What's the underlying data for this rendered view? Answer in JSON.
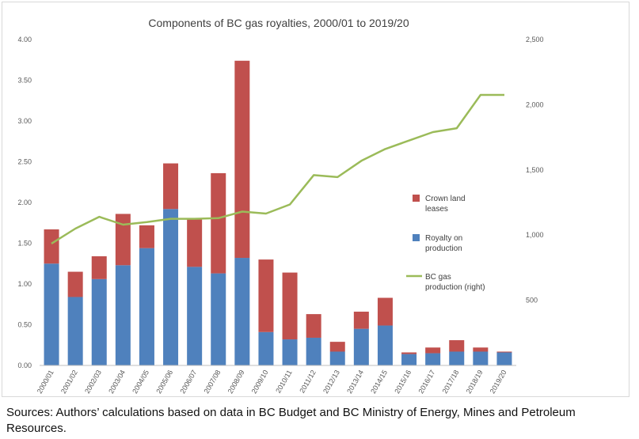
{
  "source_note": "Sources: Authors’ calculations based on data in BC Budget and BC Ministry of Energy, Mines and Petroleum Resources.",
  "colors": {
    "royalty": "#4f81bd",
    "crown": "#c0504d",
    "gas_line": "#9bbb59",
    "axis": "#bfbfbf",
    "tick_text": "#595959"
  },
  "chart_data": {
    "type": "bar",
    "stacked": true,
    "title": "Components of BC gas royalties, 2000/01 to 2019/20",
    "categories": [
      "2000/01",
      "2001/02",
      "2002/03",
      "2003/04",
      "2004/05",
      "2005/06",
      "2006/07",
      "2007/08",
      "2008/09",
      "2009/10",
      "2010/11",
      "2011/12",
      "2012/13",
      "2013/14",
      "2014/15",
      "2015/16",
      "2016/17",
      "2017/18",
      "2018/19",
      "2019/20"
    ],
    "series": [
      {
        "name": "Royalty on production",
        "color": "#4f81bd",
        "axis": "left",
        "values": [
          1.25,
          0.84,
          1.06,
          1.23,
          1.44,
          1.92,
          1.21,
          1.13,
          1.32,
          0.41,
          0.32,
          0.34,
          0.17,
          0.45,
          0.49,
          0.14,
          0.15,
          0.17,
          0.17,
          0.16
        ]
      },
      {
        "name": "Crown land leases",
        "color": "#c0504d",
        "axis": "left",
        "values": [
          0.42,
          0.31,
          0.28,
          0.63,
          0.28,
          0.56,
          0.59,
          1.23,
          2.42,
          0.89,
          0.82,
          0.29,
          0.12,
          0.21,
          0.34,
          0.02,
          0.07,
          0.14,
          0.05,
          0.01
        ]
      },
      {
        "name": "BC gas production (right)",
        "color": "#9bbb59",
        "type": "line",
        "axis": "right",
        "values": [
          935,
          1050,
          1140,
          1080,
          1100,
          1125,
          1125,
          1130,
          1180,
          1165,
          1235,
          1460,
          1445,
          1570,
          1660,
          1725,
          1790,
          1820,
          2075,
          2075
        ]
      }
    ],
    "left_axis": {
      "ylim": [
        0,
        4
      ],
      "ticks": [
        "4.00",
        "3.50",
        "3.00",
        "2.50",
        "2.00",
        "1.50",
        "1.00",
        "0.50",
        "0.00"
      ],
      "tick_values": [
        4,
        3.5,
        3,
        2.5,
        2,
        1.5,
        1,
        0.5,
        0
      ]
    },
    "right_axis": {
      "ylim": [
        0,
        2500
      ],
      "ticks": [
        "2,500",
        "2,000",
        "1,500",
        "1,000",
        "500"
      ],
      "tick_values": [
        2500,
        2000,
        1500,
        1000,
        500
      ]
    },
    "legend": {
      "placement": "right",
      "entries": [
        {
          "label_lines": [
            "Crown land",
            "leases"
          ],
          "color": "#c0504d",
          "kind": "box"
        },
        {
          "label_lines": [
            "Royalty on",
            "production"
          ],
          "color": "#4f81bd",
          "kind": "box"
        },
        {
          "label_lines": [
            "BC gas",
            "production (right)"
          ],
          "color": "#9bbb59",
          "kind": "line"
        }
      ]
    },
    "grid": false
  }
}
